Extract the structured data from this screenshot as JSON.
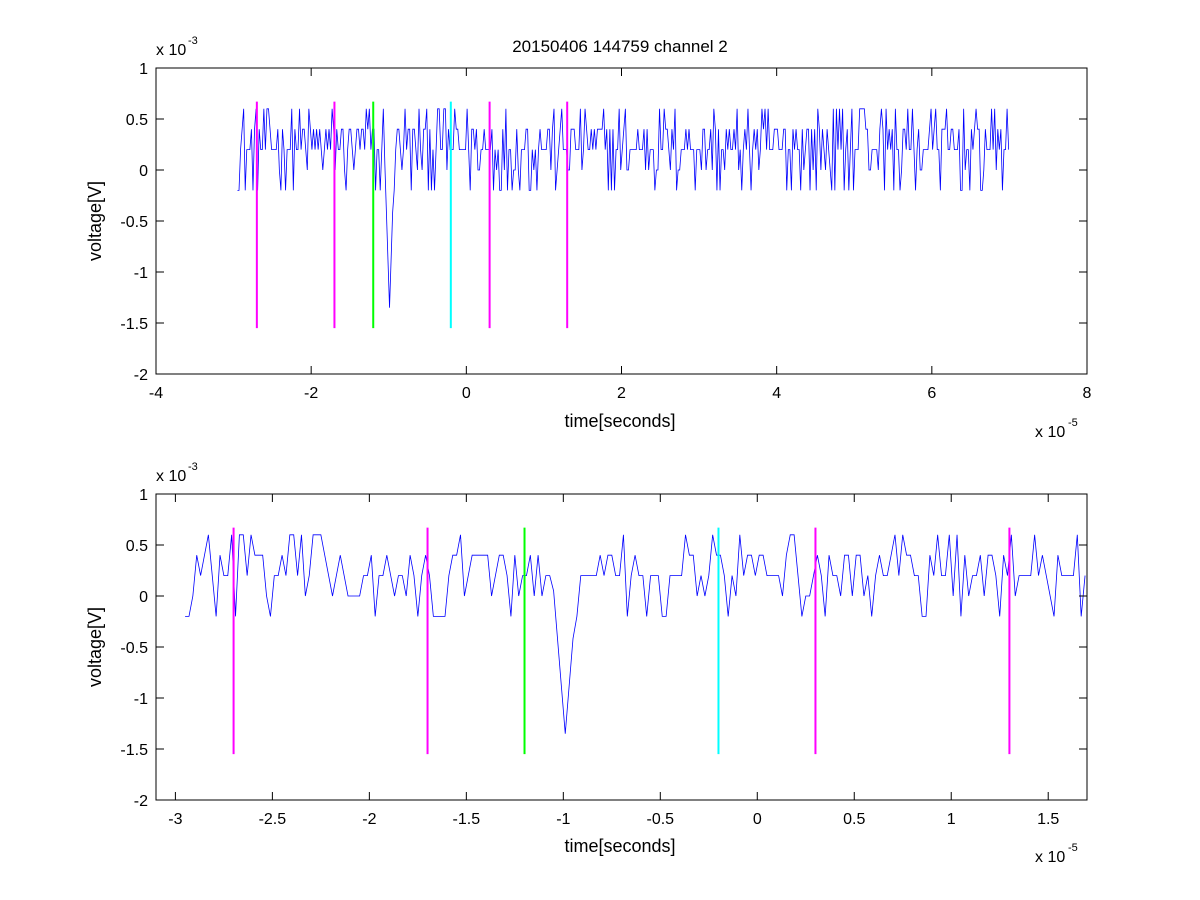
{
  "figure_title": "20150406 144759 channel 2",
  "chart_data": [
    {
      "type": "line",
      "title": "20150406 144759 channel 2",
      "xlabel": "time[seconds]",
      "ylabel": "voltage[V]",
      "x_exponent_base": "x 10",
      "x_exponent_power": "-5",
      "y_exponent_base": "x 10",
      "y_exponent_power": "-3",
      "xlim": [
        -4,
        8
      ],
      "ylim": [
        -2,
        1
      ],
      "xticks": [
        -4,
        -2,
        0,
        2,
        4,
        6,
        8
      ],
      "yticks": [
        -2,
        -1.5,
        -1,
        -0.5,
        0,
        0.5,
        1
      ],
      "xtick_labels": [
        "-4",
        "-2",
        "0",
        "2",
        "4",
        "6",
        "8"
      ],
      "ytick_labels": [
        "-2",
        "-1.5",
        "-1",
        "-0.5",
        "0",
        "0.5",
        "1"
      ],
      "grid": false,
      "signal": {
        "color": "#0000ff",
        "x_start": -2.95,
        "x_end": 7.0,
        "dx": 0.02
      },
      "markers": [
        {
          "x": -2.7,
          "color": "#ff00ff"
        },
        {
          "x": -1.7,
          "color": "#ff00ff"
        },
        {
          "x": -1.2,
          "color": "#00ff00"
        },
        {
          "x": -0.2,
          "color": "#00ffff"
        },
        {
          "x": 0.3,
          "color": "#ff00ff"
        },
        {
          "x": 1.3,
          "color": "#ff00ff"
        }
      ],
      "marker_range": [
        -1.55,
        0.67
      ]
    },
    {
      "type": "line",
      "title": "",
      "xlabel": "time[seconds]",
      "ylabel": "voltage[V]",
      "x_exponent_base": "x 10",
      "x_exponent_power": "-5",
      "y_exponent_base": "x 10",
      "y_exponent_power": "-3",
      "xlim": [
        -3.1,
        1.7
      ],
      "ylim": [
        -2,
        1
      ],
      "xticks": [
        -3,
        -2.5,
        -2,
        -1.5,
        -1,
        -0.5,
        0,
        0.5,
        1,
        1.5
      ],
      "yticks": [
        -2,
        -1.5,
        -1,
        -0.5,
        0,
        0.5,
        1
      ],
      "xtick_labels": [
        "-3",
        "-2.5",
        "-2",
        "-1.5",
        "-1",
        "-0.5",
        "0",
        "0.5",
        "1",
        "1.5"
      ],
      "ytick_labels": [
        "-2",
        "-1.5",
        "-1",
        "-0.5",
        "0",
        "0.5",
        "1"
      ],
      "grid": false,
      "signal": {
        "color": "#0000ff",
        "x_start": -2.95,
        "x_end": 1.7,
        "dx": 0.02
      },
      "markers": [
        {
          "x": -2.7,
          "color": "#ff00ff"
        },
        {
          "x": -1.7,
          "color": "#ff00ff"
        },
        {
          "x": -1.2,
          "color": "#00ff00"
        },
        {
          "x": -0.2,
          "color": "#00ffff"
        },
        {
          "x": 0.3,
          "color": "#ff00ff"
        },
        {
          "x": 1.3,
          "color": "#ff00ff"
        }
      ],
      "marker_range": [
        -1.55,
        0.67
      ]
    }
  ]
}
